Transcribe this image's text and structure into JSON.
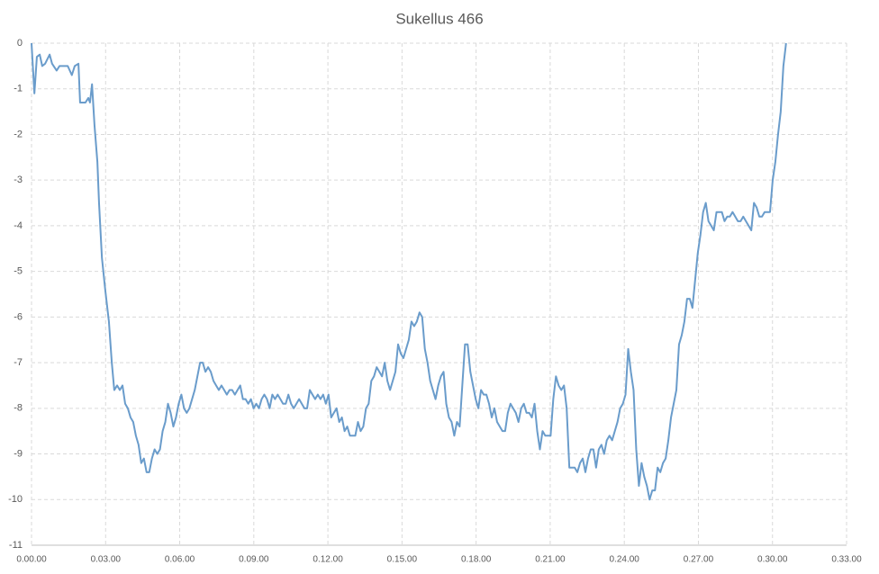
{
  "chart_data": {
    "type": "line",
    "title": "Sukellus 466",
    "x": [
      0,
      7,
      13,
      20,
      26,
      33,
      44,
      50,
      61,
      68,
      77,
      88,
      98,
      105,
      114,
      118,
      131,
      138,
      142,
      147,
      153,
      160,
      164,
      171,
      179,
      188,
      195,
      201,
      208,
      214.5,
      221,
      227.5,
      234,
      240.5,
      247,
      253.5,
      260,
      266.5,
      273,
      279.5,
      286,
      292.5,
      299,
      305.5,
      312,
      318.5,
      325,
      331.5,
      338,
      344.5,
      351,
      357.5,
      364,
      370.5,
      377,
      383.5,
      390,
      396.5,
      403,
      409.5,
      416,
      422.5,
      429,
      435.5,
      442,
      448.5,
      455,
      461.5,
      468,
      474.5,
      481,
      487.5,
      494,
      500.5,
      507,
      513.5,
      520,
      526.5,
      533,
      539.5,
      546,
      552.5,
      559,
      565.5,
      572,
      578.5,
      585,
      591.5,
      598,
      604.5,
      611,
      617.5,
      624,
      630.5,
      637,
      643.5,
      650,
      656.5,
      663,
      669.5,
      676,
      682.5,
      689,
      695.5,
      702,
      708.5,
      715,
      721.5,
      728,
      734.5,
      741,
      747.5,
      754,
      760.5,
      767,
      773.5,
      780,
      786.5,
      793,
      799.5,
      806,
      812.5,
      819,
      825.5,
      832,
      838.5,
      845,
      851.5,
      858,
      864.5,
      871,
      877.5,
      884,
      890.5,
      897,
      903.5,
      910,
      916.5,
      923,
      929.5,
      936,
      942.5,
      949,
      955.5,
      962,
      968.5,
      975,
      981.5,
      988,
      994.5,
      1001,
      1007.5,
      1014,
      1020.5,
      1027,
      1033.5,
      1040,
      1046.5,
      1053,
      1059.5,
      1066,
      1072.5,
      1079,
      1085.5,
      1092,
      1098.5,
      1105,
      1111.5,
      1118,
      1124.5,
      1131,
      1137.5,
      1144,
      1150.5,
      1157,
      1163.5,
      1170,
      1176.5,
      1183,
      1189.5,
      1196,
      1202.5,
      1209,
      1215.5,
      1222,
      1228.5,
      1235,
      1241.5,
      1248,
      1254.5,
      1261,
      1267.5,
      1274,
      1280.5,
      1287,
      1293.5,
      1300,
      1306.5,
      1313,
      1319.5,
      1326,
      1332.5,
      1339,
      1345.5,
      1352,
      1358.5,
      1365,
      1371.5,
      1378,
      1384.5,
      1391,
      1397.5,
      1404,
      1410.5,
      1417,
      1423.5,
      1430,
      1436.5,
      1443,
      1449.5,
      1456,
      1462.5,
      1469,
      1475.5,
      1482,
      1488.5,
      1495,
      1501.5,
      1508,
      1514.5,
      1521,
      1527.5,
      1534,
      1540.5,
      1547,
      1553.5,
      1560,
      1566.5,
      1573,
      1579.5,
      1586,
      1592.5,
      1599,
      1605.5,
      1612,
      1618.5,
      1625,
      1631.5,
      1638,
      1644.5,
      1651,
      1657.5,
      1664,
      1670.5,
      1677,
      1683.5,
      1690,
      1696.5,
      1703,
      1709.5,
      1716,
      1722.5,
      1729,
      1735.5,
      1742,
      1748.5,
      1755,
      1761.5,
      1768,
      1774.5,
      1781,
      1787.5,
      1794,
      1800.5,
      1807,
      1813.5,
      1820,
      1826.5,
      1833
    ],
    "series": [
      {
        "color": "#6a9ccb",
        "values": [
          0,
          -1.1,
          -0.3,
          -0.25,
          -0.5,
          -0.45,
          -0.25,
          -0.45,
          -0.6,
          -0.5,
          -0.5,
          -0.5,
          -0.7,
          -0.5,
          -0.45,
          -1.3,
          -1.3,
          -1.2,
          -1.3,
          -0.9,
          -1.8,
          -2.6,
          -3.5,
          -4.7,
          -5.4,
          -6.1,
          -7,
          -7.6,
          -7.5,
          -7.6,
          -7.5,
          -7.9,
          -8,
          -8.2,
          -8.3,
          -8.6,
          -8.8,
          -9.2,
          -9.1,
          -9.4,
          -9.4,
          -9.1,
          -8.9,
          -9,
          -8.9,
          -8.5,
          -8.3,
          -7.9,
          -8.1,
          -8.4,
          -8.2,
          -7.9,
          -7.7,
          -8,
          -8.1,
          -8,
          -7.8,
          -7.6,
          -7.3,
          -7,
          -7,
          -7.2,
          -7.1,
          -7.2,
          -7.4,
          -7.5,
          -7.6,
          -7.5,
          -7.6,
          -7.7,
          -7.6,
          -7.6,
          -7.7,
          -7.6,
          -7.5,
          -7.8,
          -7.8,
          -7.9,
          -7.8,
          -8,
          -7.9,
          -8,
          -7.8,
          -7.7,
          -7.8,
          -8,
          -7.7,
          -7.8,
          -7.7,
          -7.8,
          -7.9,
          -7.9,
          -7.7,
          -7.9,
          -8,
          -7.9,
          -7.8,
          -7.9,
          -8,
          -8,
          -7.6,
          -7.7,
          -7.8,
          -7.7,
          -7.8,
          -7.7,
          -7.9,
          -7.7,
          -8.2,
          -8.1,
          -8,
          -8.3,
          -8.2,
          -8.5,
          -8.4,
          -8.6,
          -8.6,
          -8.6,
          -8.3,
          -8.5,
          -8.4,
          -8,
          -7.9,
          -7.4,
          -7.3,
          -7.1,
          -7.2,
          -7.3,
          -7,
          -7.4,
          -7.6,
          -7.4,
          -7.2,
          -6.6,
          -6.8,
          -6.9,
          -6.7,
          -6.5,
          -6.1,
          -6.2,
          -6.1,
          -5.9,
          -6,
          -6.7,
          -7,
          -7.4,
          -7.6,
          -7.8,
          -7.5,
          -7.3,
          -7.2,
          -7.9,
          -8.2,
          -8.3,
          -8.6,
          -8.3,
          -8.4,
          -7.5,
          -6.6,
          -6.6,
          -7.2,
          -7.5,
          -7.8,
          -8,
          -7.6,
          -7.7,
          -7.7,
          -7.9,
          -8.2,
          -8,
          -8.3,
          -8.4,
          -8.5,
          -8.5,
          -8.1,
          -7.9,
          -8,
          -8.1,
          -8.3,
          -8,
          -7.9,
          -8.1,
          -8.1,
          -8.2,
          -7.9,
          -8.5,
          -8.9,
          -8.5,
          -8.6,
          -8.6,
          -8.6,
          -7.8,
          -7.3,
          -7.5,
          -7.6,
          -7.5,
          -8,
          -9.3,
          -9.3,
          -9.3,
          -9.4,
          -9.2,
          -9.1,
          -9.4,
          -9.1,
          -8.9,
          -8.9,
          -9.3,
          -8.9,
          -8.8,
          -9,
          -8.7,
          -8.6,
          -8.7,
          -8.5,
          -8.3,
          -8,
          -7.9,
          -7.7,
          -6.7,
          -7.2,
          -7.6,
          -8.9,
          -9.7,
          -9.2,
          -9.5,
          -9.7,
          -10,
          -9.8,
          -9.8,
          -9.3,
          -9.4,
          -9.2,
          -9.1,
          -8.7,
          -8.2,
          -7.9,
          -7.6,
          -6.6,
          -6.4,
          -6.1,
          -5.6,
          -5.6,
          -5.8,
          -5.2,
          -4.6,
          -4.2,
          -3.7,
          -3.5,
          -3.9,
          -4,
          -4.1,
          -3.7,
          -3.7,
          -3.7,
          -3.9,
          -3.8,
          -3.8,
          -3.7,
          -3.8,
          -3.9,
          -3.9,
          -3.8,
          -3.9,
          -4,
          -4.1,
          -3.5,
          -3.6,
          -3.8,
          -3.8,
          -3.7,
          -3.7,
          -3.7,
          -3,
          -2.6,
          -2,
          -1.5,
          -0.5,
          0
        ]
      }
    ],
    "xlim": [
      0,
      1980
    ],
    "xticks": [
      {
        "value": 0,
        "label": "0.00.00"
      },
      {
        "value": 180,
        "label": "0.03.00"
      },
      {
        "value": 360,
        "label": "0.06.00"
      },
      {
        "value": 540,
        "label": "0.09.00"
      },
      {
        "value": 720,
        "label": "0.12.00"
      },
      {
        "value": 900,
        "label": "0.15.00"
      },
      {
        "value": 1080,
        "label": "0.18.00"
      },
      {
        "value": 1260,
        "label": "0.21.00"
      },
      {
        "value": 1440,
        "label": "0.24.00"
      },
      {
        "value": 1620,
        "label": "0.27.00"
      },
      {
        "value": 1800,
        "label": "0.30.00"
      },
      {
        "value": 1980,
        "label": "0.33.00"
      }
    ],
    "ylim": [
      -11,
      0
    ],
    "yticks": [
      -11,
      -10,
      -9,
      -8,
      -7,
      -6,
      -5,
      -4,
      -3,
      -2,
      -1,
      0
    ],
    "grid": true
  }
}
